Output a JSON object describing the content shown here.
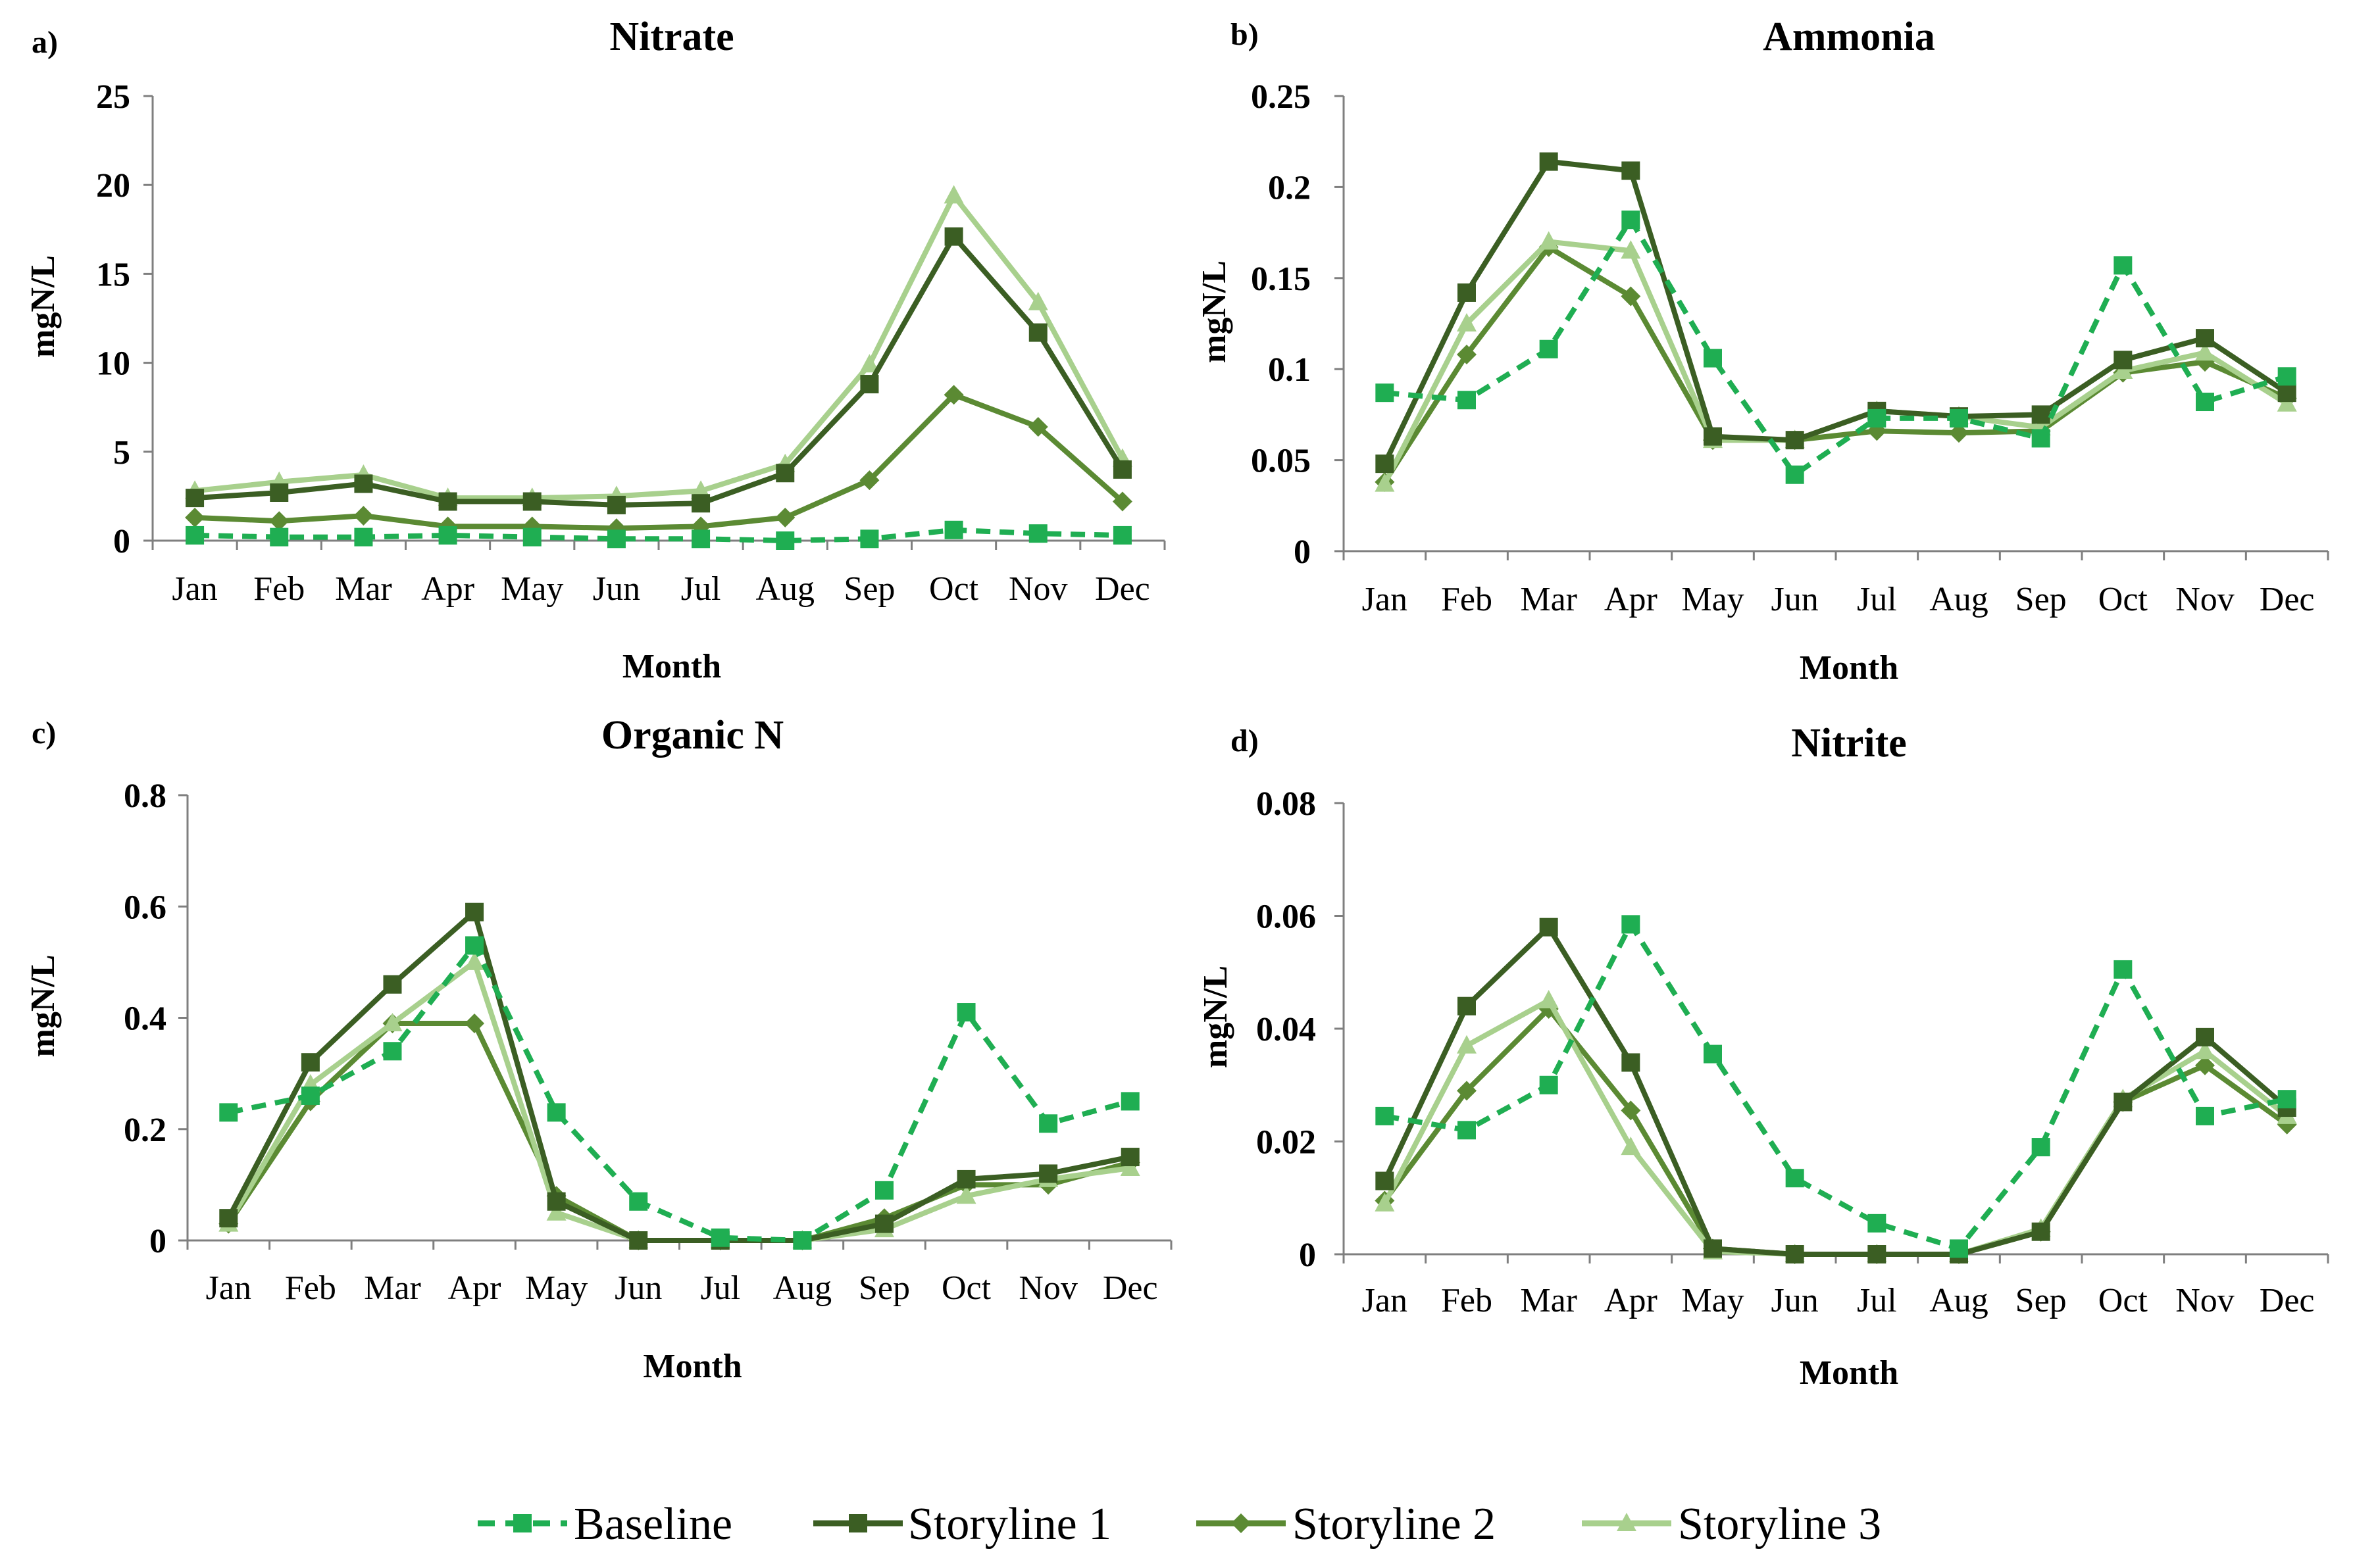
{
  "months": [
    "Jan",
    "Feb",
    "Mar",
    "Apr",
    "May",
    "Jun",
    "Jul",
    "Aug",
    "Sep",
    "Oct",
    "Nov",
    "Dec"
  ],
  "colors": {
    "baseline": "#1fae52",
    "storyline1": "#3b5e23",
    "storyline2": "#5b8a33",
    "storyline3": "#a8d08d",
    "axis": "#7f7f7f"
  },
  "legend": [
    {
      "key": "baseline",
      "label": "Baseline",
      "marker": "square",
      "dash": true
    },
    {
      "key": "storyline1",
      "label": "Storyline 1",
      "marker": "square",
      "dash": false
    },
    {
      "key": "storyline2",
      "label": "Storyline 2",
      "marker": "diamond",
      "dash": false
    },
    {
      "key": "storyline3",
      "label": "Storyline 3",
      "marker": "triangle",
      "dash": false
    }
  ],
  "chart_data": [
    {
      "id": "nitrate",
      "panel": "a)",
      "type": "line",
      "title": "Nitrate",
      "xlabel": "Month",
      "ylabel": "mgN/L",
      "ylim": [
        0,
        25
      ],
      "yticks": [
        "0",
        "5",
        "10",
        "15",
        "20",
        "25"
      ],
      "series": [
        {
          "key": "baseline",
          "name": "Baseline",
          "values": [
            0.3,
            0.2,
            0.2,
            0.3,
            0.2,
            0.1,
            0.1,
            0.0,
            0.1,
            0.6,
            0.4,
            0.3
          ]
        },
        {
          "key": "storyline1",
          "name": "Storyline 1",
          "values": [
            2.4,
            2.7,
            3.2,
            2.2,
            2.2,
            2.0,
            2.1,
            3.8,
            8.8,
            17.1,
            11.7,
            4.0
          ]
        },
        {
          "key": "storyline2",
          "name": "Storyline 2",
          "values": [
            1.3,
            1.1,
            1.4,
            0.8,
            0.8,
            0.7,
            0.8,
            1.3,
            3.4,
            8.2,
            6.4,
            2.2
          ]
        },
        {
          "key": "storyline3",
          "name": "Storyline 3",
          "values": [
            2.8,
            3.3,
            3.7,
            2.4,
            2.4,
            2.5,
            2.8,
            4.3,
            9.9,
            19.4,
            13.4,
            4.6
          ]
        }
      ]
    },
    {
      "id": "ammonia",
      "panel": "b)",
      "type": "line",
      "title": "Ammonia",
      "xlabel": "Month",
      "ylabel": "mgN/L",
      "ylim": [
        0,
        0.25
      ],
      "yticks": [
        "0",
        "0.05",
        "0.1",
        "0.15",
        "0.2",
        "0.25"
      ],
      "series": [
        {
          "key": "baseline",
          "name": "Baseline",
          "values": [
            0.087,
            0.083,
            0.111,
            0.182,
            0.106,
            0.042,
            0.073,
            0.073,
            0.062,
            0.157,
            0.082,
            0.096
          ]
        },
        {
          "key": "storyline1",
          "name": "Storyline 1",
          "values": [
            0.048,
            0.142,
            0.214,
            0.209,
            0.063,
            0.061,
            0.077,
            0.074,
            0.075,
            0.105,
            0.117,
            0.087
          ]
        },
        {
          "key": "storyline2",
          "name": "Storyline 2",
          "values": [
            0.038,
            0.108,
            0.167,
            0.14,
            0.061,
            0.061,
            0.066,
            0.065,
            0.066,
            0.098,
            0.104,
            0.084
          ]
        },
        {
          "key": "storyline3",
          "name": "Storyline 3",
          "values": [
            0.037,
            0.125,
            0.17,
            0.165,
            0.061,
            0.061,
            0.077,
            0.074,
            0.068,
            0.099,
            0.109,
            0.081
          ]
        }
      ]
    },
    {
      "id": "organic-n",
      "panel": "c)",
      "type": "line",
      "title": "Organic N",
      "xlabel": "Month",
      "ylabel": "mgN/L",
      "ylim": [
        0,
        0.8
      ],
      "yticks": [
        "0",
        "0.2",
        "0.4",
        "0.6",
        "0.8"
      ],
      "series": [
        {
          "key": "baseline",
          "name": "Baseline",
          "values": [
            0.23,
            0.26,
            0.34,
            0.53,
            0.23,
            0.07,
            0.005,
            0.0,
            0.09,
            0.41,
            0.21,
            0.25
          ]
        },
        {
          "key": "storyline1",
          "name": "Storyline 1",
          "values": [
            0.04,
            0.32,
            0.46,
            0.59,
            0.07,
            0.0,
            0.0,
            0.0,
            0.03,
            0.11,
            0.12,
            0.15
          ]
        },
        {
          "key": "storyline2",
          "name": "Storyline 2",
          "values": [
            0.03,
            0.25,
            0.39,
            0.39,
            0.08,
            0.0,
            0.0,
            0.0,
            0.04,
            0.1,
            0.1,
            0.14
          ]
        },
        {
          "key": "storyline3",
          "name": "Storyline 3",
          "values": [
            0.03,
            0.28,
            0.39,
            0.5,
            0.05,
            0.0,
            0.0,
            0.0,
            0.02,
            0.08,
            0.11,
            0.13
          ]
        }
      ]
    },
    {
      "id": "nitrite",
      "panel": "d)",
      "type": "line",
      "title": "Nitrite",
      "xlabel": "Month",
      "ylabel": "mgN/L",
      "ylim": [
        0,
        0.08
      ],
      "yticks": [
        "0",
        "0.02",
        "0.04",
        "0.06",
        "0.08"
      ],
      "series": [
        {
          "key": "baseline",
          "name": "Baseline",
          "values": [
            0.0245,
            0.022,
            0.03,
            0.0585,
            0.0355,
            0.0135,
            0.0055,
            0.001,
            0.019,
            0.0505,
            0.0245,
            0.0275
          ]
        },
        {
          "key": "storyline1",
          "name": "Storyline 1",
          "values": [
            0.013,
            0.044,
            0.058,
            0.034,
            0.001,
            0.0,
            0.0,
            0.0,
            0.004,
            0.027,
            0.0385,
            0.026
          ]
        },
        {
          "key": "storyline2",
          "name": "Storyline 2",
          "values": [
            0.0095,
            0.029,
            0.0435,
            0.0255,
            0.001,
            0.0,
            0.0,
            0.0,
            0.004,
            0.027,
            0.0335,
            0.023
          ]
        },
        {
          "key": "storyline3",
          "name": "Storyline 3",
          "values": [
            0.009,
            0.037,
            0.045,
            0.019,
            0.0005,
            0.0,
            0.0,
            0.0,
            0.0045,
            0.0275,
            0.036,
            0.0245
          ]
        }
      ]
    }
  ]
}
